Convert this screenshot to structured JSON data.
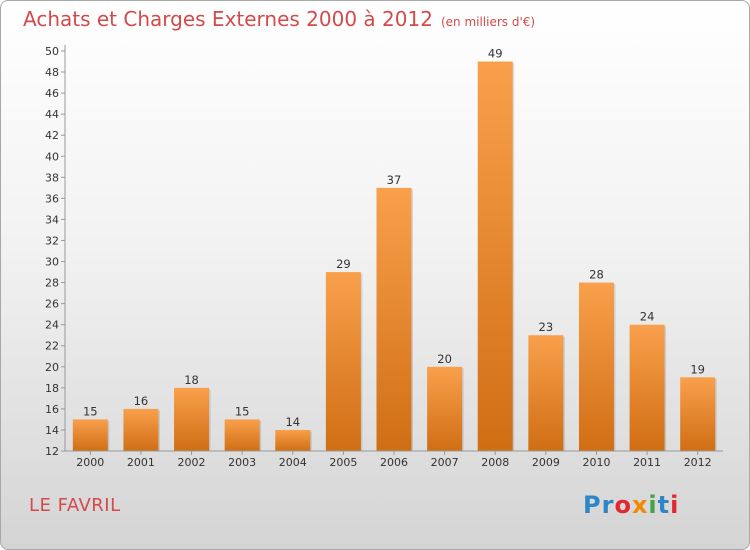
{
  "header": {
    "title": "Achats et Charges Externes 2000 à 2012",
    "subtitle": "(en milliers d'€)"
  },
  "footer": {
    "place": "LE FAVRIL",
    "logo": [
      "Pr",
      "o",
      "x",
      "i",
      "t",
      "i"
    ]
  },
  "colors": {
    "bar_top": "#f9a04c",
    "bar_bottom": "#d06e14",
    "title": "#d44a4a"
  },
  "chart_data": {
    "type": "bar",
    "title": "Achats et Charges Externes 2000 à 2012",
    "unit": "(en milliers d'€)",
    "categories": [
      "2000",
      "2001",
      "2002",
      "2003",
      "2004",
      "2005",
      "2006",
      "2007",
      "2008",
      "2009",
      "2010",
      "2011",
      "2012"
    ],
    "values": [
      15,
      16,
      18,
      15,
      14,
      29,
      37,
      20,
      49,
      23,
      28,
      24,
      19
    ],
    "ylim": [
      12,
      50
    ],
    "ytick_step": 2,
    "grid": false,
    "legend": "none"
  }
}
